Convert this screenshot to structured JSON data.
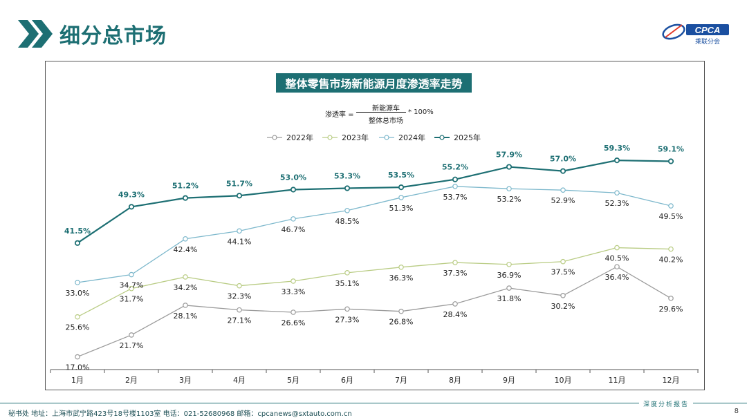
{
  "page": {
    "title": "细分总市场",
    "logo_text": "CPCA",
    "logo_sub": "乘联分会",
    "footer_text": "秘书处   地址：上海市武宁路423号18号楼1103室  电话：021-52680968   邮箱：cpcanews@sxtauto.com.cn",
    "footer_report": "深度分析报告",
    "page_number": "8"
  },
  "formula": {
    "left": "渗透率 =",
    "numerator": "新能源车",
    "denominator": "整体总市场",
    "multiplier": "* 100%"
  },
  "colors": {
    "brand": "#1d6f73",
    "s2022": "#9b9b9b",
    "s2023": "#b9cc84",
    "s2024": "#7db8cc",
    "s2025": "#1d6f73"
  },
  "chart_data": {
    "type": "line",
    "title": "整体零售市场新能源月度渗透率走势",
    "categories": [
      "1月",
      "2月",
      "3月",
      "4月",
      "5月",
      "6月",
      "7月",
      "8月",
      "9月",
      "10月",
      "11月",
      "12月"
    ],
    "ylim": [
      15,
      62
    ],
    "grid": false,
    "legend_position": "top-center",
    "series": [
      {
        "name": "2022年",
        "color": "#9b9b9b",
        "label_pos": "below",
        "values": [
          17.0,
          21.7,
          28.1,
          27.1,
          26.6,
          27.3,
          26.8,
          28.4,
          31.8,
          30.2,
          36.4,
          29.6
        ],
        "labels": [
          "17.0%",
          "21.7%",
          "28.1%",
          "27.1%",
          "26.6%",
          "27.3%",
          "26.8%",
          "28.4%",
          "31.8%",
          "30.2%",
          "36.4%",
          "29.6%"
        ]
      },
      {
        "name": "2023年",
        "color": "#b9cc84",
        "label_pos": "below",
        "values": [
          25.6,
          31.7,
          34.2,
          32.3,
          33.3,
          35.1,
          36.3,
          37.3,
          36.9,
          37.5,
          40.5,
          40.2
        ],
        "labels": [
          "25.6%",
          "31.7%",
          "34.2%",
          "32.3%",
          "33.3%",
          "35.1%",
          "36.3%",
          "37.3%",
          "36.9%",
          "37.5%",
          "40.5%",
          "40.2%"
        ]
      },
      {
        "name": "2024年",
        "color": "#7db8cc",
        "label_pos": "below",
        "values": [
          33.0,
          34.7,
          42.4,
          44.1,
          46.7,
          48.5,
          51.3,
          53.7,
          53.2,
          52.9,
          52.3,
          49.5
        ],
        "labels": [
          "33.0%",
          "34.7%",
          "42.4%",
          "44.1%",
          "46.7%",
          "48.5%",
          "51.3%",
          "53.7%",
          "53.2%",
          "52.9%",
          "52.3%",
          "49.5%"
        ]
      },
      {
        "name": "2025年",
        "color": "#1d6f73",
        "label_pos": "above",
        "bold": true,
        "values": [
          41.5,
          49.3,
          51.2,
          51.7,
          53.0,
          53.3,
          53.5,
          55.2,
          57.9,
          57.0,
          59.3,
          59.1
        ],
        "labels": [
          "41.5%",
          "49.3%",
          "51.2%",
          "51.7%",
          "53.0%",
          "53.3%",
          "53.5%",
          "55.2%",
          "57.9%",
          "57.0%",
          "59.3%",
          "59.1%"
        ]
      }
    ]
  }
}
